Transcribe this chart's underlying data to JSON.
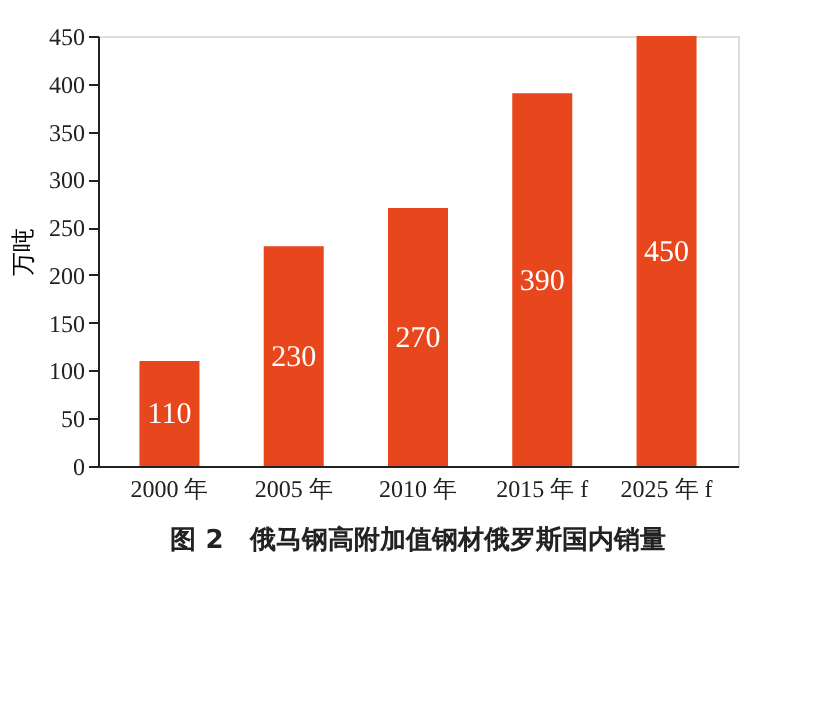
{
  "chart_data": {
    "type": "bar",
    "title": "图 2　俄马钢高附加值钢材俄罗斯国内销量",
    "ylabel": "万吨",
    "categories": [
      "2000 年",
      "2005 年",
      "2010 年",
      "2015 年 f",
      "2025 年 f"
    ],
    "values": [
      110,
      230,
      270,
      390,
      450
    ],
    "color": "#e8461c",
    "ylim": [
      0,
      450
    ],
    "yticks": [
      0,
      50,
      100,
      150,
      200,
      250,
      300,
      350,
      400,
      450
    ],
    "grid": false,
    "data_labels": true
  }
}
